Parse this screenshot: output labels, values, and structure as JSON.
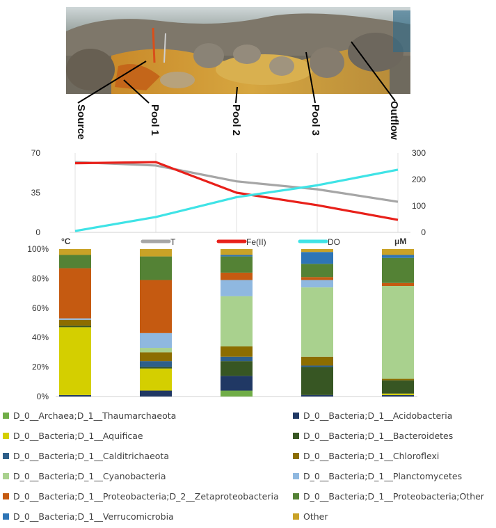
{
  "photo": {
    "sites": [
      "Source",
      "Pool 1",
      "Pool 2",
      "Pool 3",
      "Outflow"
    ]
  },
  "chart_data": [
    {
      "type": "line",
      "title": "",
      "x": [
        "Source",
        "Pool 1",
        "Pool 2",
        "Pool 3",
        "Outflow"
      ],
      "left_axis": {
        "unit_label": "°C",
        "ylim": [
          0,
          70
        ],
        "ticks": [
          "0",
          "35",
          "70"
        ]
      },
      "right_axis": {
        "unit_label": "μM",
        "ylim": [
          0,
          300
        ],
        "ticks": [
          "0",
          "100",
          "200",
          "300"
        ]
      },
      "series": [
        {
          "name": "T",
          "axis": "left",
          "color": "#a6a6a6",
          "values": [
            62,
            59,
            45,
            38,
            27
          ]
        },
        {
          "name": "Fe(II)",
          "axis": "left",
          "color": "#e8201a",
          "values": [
            61,
            62,
            35,
            24,
            11
          ]
        },
        {
          "name": "DO",
          "axis": "right",
          "color": "#3fe3e6",
          "values": [
            5,
            58,
            133,
            178,
            237
          ]
        }
      ],
      "legend_position": "bottom"
    },
    {
      "type": "bar",
      "stacked": true,
      "title": "",
      "categories": [
        "Source",
        "Pool 1",
        "Pool 2",
        "Pool 3",
        "Outflow"
      ],
      "ylim": [
        0,
        100
      ],
      "yticks": [
        "0%",
        "20%",
        "40%",
        "60%",
        "80%",
        "100%"
      ],
      "series": [
        {
          "name": "D_0__Archaea;D_1__Thaumarchaeota",
          "color": "#70ad47",
          "values": [
            0,
            0,
            4,
            0,
            0
          ]
        },
        {
          "name": "D_0__Bacteria;D_1__Acidobacteria",
          "color": "#203864",
          "values": [
            1,
            4,
            10,
            1,
            1
          ]
        },
        {
          "name": "D_0__Bacteria;D_1__Aquificae",
          "color": "#d4cf00",
          "values": [
            46,
            15,
            0,
            0,
            1
          ]
        },
        {
          "name": "D_0__Bacteria;D_1__Bacteroidetes",
          "color": "#375623",
          "values": [
            1,
            1,
            10,
            19,
            9
          ]
        },
        {
          "name": "D_0__Bacteria;D_1__Calditrichaeota",
          "color": "#2e5f8a",
          "values": [
            0,
            4,
            3,
            1,
            0
          ]
        },
        {
          "name": "D_0__Bacteria;D_1__Chloroflexi",
          "color": "#8c6d00",
          "values": [
            4,
            6,
            7,
            6,
            1
          ]
        },
        {
          "name": "D_0__Bacteria;D_1__Cyanobacteria",
          "color": "#a9d18e",
          "values": [
            0,
            3,
            34,
            47,
            63
          ]
        },
        {
          "name": "D_0__Bacteria;D_1__Planctomycetes",
          "color": "#8fb8e0",
          "values": [
            1,
            10,
            11,
            5,
            0
          ]
        },
        {
          "name": "D_0__Bacteria;D_1__Proteobacteria;D_2__Zetaproteobacteria",
          "color": "#c55a11",
          "values": [
            34,
            36,
            5,
            2,
            2
          ]
        },
        {
          "name": "D_0__Bacteria;D_1__Proteobacteria;Other",
          "color": "#548235",
          "values": [
            9,
            16,
            11,
            9,
            17
          ]
        },
        {
          "name": "D_0__Bacteria;D_1__Verrucomicrobia",
          "color": "#2e75b6",
          "values": [
            0,
            0,
            1,
            8,
            2
          ]
        },
        {
          "name": "Other",
          "color": "#c9a227",
          "values": [
            4,
            5,
            4,
            2,
            4
          ]
        }
      ]
    }
  ]
}
